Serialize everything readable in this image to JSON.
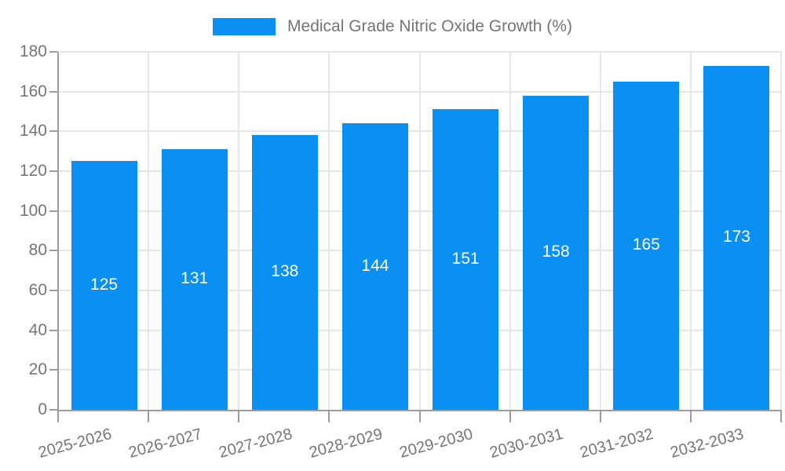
{
  "legend": {
    "label": "Medical Grade Nitric Oxide Growth (%)"
  },
  "chart_data": {
    "type": "bar",
    "title": "Medical Grade Nitric Oxide Growth (%)",
    "categories": [
      "2025-2026",
      "2026-2027",
      "2027-2028",
      "2028-2029",
      "2029-2030",
      "2030-2031",
      "2031-2032",
      "2032-2033"
    ],
    "values": [
      125,
      131,
      138,
      144,
      151,
      158,
      165,
      173
    ],
    "xlabel": "",
    "ylabel": "",
    "ylim": [
      0,
      180
    ],
    "ytick_step": 20,
    "grid": true,
    "legend_position": "top",
    "value_labels": "inside-middle",
    "colors": {
      "bar": "#0a8ff2",
      "value_label": "#ffffff",
      "axis": "#9c9c9c",
      "gridline": "#e6e6e6",
      "text": "#757575",
      "background": "#ffffff"
    }
  }
}
